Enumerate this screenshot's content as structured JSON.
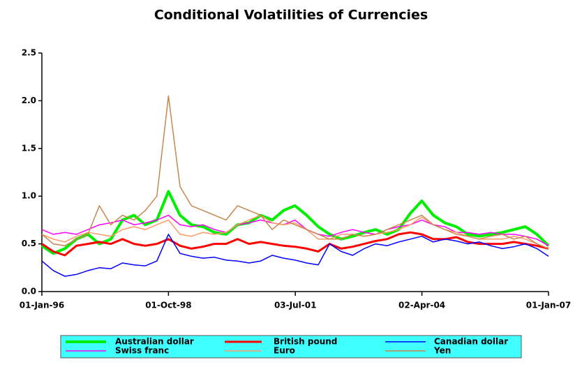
{
  "chart_data": {
    "type": "line",
    "title": "Conditional Volatilities of Currencies",
    "x": [
      "1996-01-01",
      "1996-04-01",
      "1996-07-01",
      "1996-10-01",
      "1997-01-01",
      "1997-04-01",
      "1997-07-01",
      "1997-10-01",
      "1998-01-01",
      "1998-04-01",
      "1998-07-01",
      "1998-10-01",
      "1999-01-01",
      "1999-04-01",
      "1999-07-01",
      "1999-10-01",
      "2000-01-01",
      "2000-04-01",
      "2000-07-01",
      "2000-10-01",
      "2001-01-01",
      "2001-04-01",
      "2001-07-01",
      "2001-10-01",
      "2002-01-01",
      "2002-04-01",
      "2002-07-01",
      "2002-10-01",
      "2003-01-01",
      "2003-04-01",
      "2003-07-01",
      "2003-10-01",
      "2004-01-01",
      "2004-04-01",
      "2004-07-01",
      "2004-10-01",
      "2005-01-01",
      "2005-04-01",
      "2005-07-01",
      "2005-10-01",
      "2006-01-01",
      "2006-04-01",
      "2006-07-01",
      "2006-10-01",
      "2007-01-01"
    ],
    "xlim": [
      "1996-01-01",
      "2007-01-01"
    ],
    "xticks": [
      {
        "value": "1996-01-01",
        "label": "01-Jan-96"
      },
      {
        "value": "1998-10-01",
        "label": "01-Oct-98"
      },
      {
        "value": "2001-07-03",
        "label": "03-Jul-01"
      },
      {
        "value": "2004-04-02",
        "label": "02-Apr-04"
      },
      {
        "value": "2007-01-01",
        "label": "01-Jan-07"
      }
    ],
    "ylim": [
      0,
      2.5
    ],
    "yticks": [
      {
        "value": 0,
        "label": "0.0"
      },
      0.5,
      {
        "value": 1,
        "label": "1.0"
      },
      1.5,
      {
        "value": 2,
        "label": "2.0"
      },
      2.5
    ],
    "legend_background": "#40ffff",
    "series": [
      {
        "name": "Australian dollar",
        "color": "#00ee00",
        "width": 4,
        "values": [
          0.48,
          0.4,
          0.45,
          0.55,
          0.6,
          0.5,
          0.55,
          0.75,
          0.8,
          0.7,
          0.75,
          1.05,
          0.8,
          0.7,
          0.68,
          0.62,
          0.6,
          0.7,
          0.72,
          0.8,
          0.75,
          0.85,
          0.9,
          0.8,
          0.68,
          0.6,
          0.55,
          0.58,
          0.62,
          0.65,
          0.6,
          0.65,
          0.82,
          0.95,
          0.8,
          0.72,
          0.68,
          0.6,
          0.58,
          0.6,
          0.62,
          0.65,
          0.68,
          0.6,
          0.48
        ]
      },
      {
        "name": "British pound",
        "color": "#ff0000",
        "width": 3,
        "values": [
          0.5,
          0.42,
          0.38,
          0.48,
          0.5,
          0.52,
          0.5,
          0.55,
          0.5,
          0.48,
          0.5,
          0.55,
          0.48,
          0.45,
          0.47,
          0.5,
          0.5,
          0.55,
          0.5,
          0.52,
          0.5,
          0.48,
          0.47,
          0.45,
          0.42,
          0.5,
          0.45,
          0.47,
          0.5,
          0.53,
          0.55,
          0.6,
          0.62,
          0.6,
          0.55,
          0.55,
          0.57,
          0.52,
          0.5,
          0.5,
          0.5,
          0.52,
          0.5,
          0.48,
          0.45
        ]
      },
      {
        "name": "Canadian dollar",
        "color": "#0000ff",
        "width": 1.5,
        "values": [
          0.32,
          0.22,
          0.16,
          0.18,
          0.22,
          0.25,
          0.24,
          0.3,
          0.28,
          0.27,
          0.32,
          0.6,
          0.4,
          0.37,
          0.35,
          0.36,
          0.33,
          0.32,
          0.3,
          0.32,
          0.38,
          0.35,
          0.33,
          0.3,
          0.28,
          0.5,
          0.42,
          0.38,
          0.45,
          0.5,
          0.48,
          0.52,
          0.55,
          0.58,
          0.52,
          0.55,
          0.53,
          0.5,
          0.52,
          0.48,
          0.45,
          0.47,
          0.5,
          0.45,
          0.37
        ]
      },
      {
        "name": "Swiss franc",
        "color": "#ff00ff",
        "width": 1.5,
        "values": [
          0.65,
          0.6,
          0.62,
          0.6,
          0.65,
          0.7,
          0.72,
          0.75,
          0.7,
          0.72,
          0.75,
          0.8,
          0.7,
          0.68,
          0.7,
          0.65,
          0.62,
          0.7,
          0.72,
          0.75,
          0.72,
          0.7,
          0.75,
          0.65,
          0.6,
          0.58,
          0.62,
          0.65,
          0.62,
          0.6,
          0.65,
          0.68,
          0.7,
          0.75,
          0.7,
          0.68,
          0.62,
          0.62,
          0.6,
          0.62,
          0.6,
          0.6,
          0.58,
          0.55,
          0.48
        ]
      },
      {
        "name": "Euro",
        "color": "#ff9966",
        "width": 1.5,
        "values": [
          0.6,
          0.55,
          0.52,
          0.58,
          0.62,
          0.6,
          0.58,
          0.65,
          0.68,
          0.65,
          0.7,
          0.75,
          0.6,
          0.58,
          0.62,
          0.6,
          0.62,
          0.7,
          0.75,
          0.8,
          0.72,
          0.7,
          0.72,
          0.65,
          0.55,
          0.55,
          0.6,
          0.6,
          0.58,
          0.6,
          0.62,
          0.65,
          0.7,
          0.78,
          0.7,
          0.65,
          0.62,
          0.58,
          0.55,
          0.55,
          0.55,
          0.58,
          0.55,
          0.5,
          0.45
        ]
      },
      {
        "name": "Yen",
        "color": "#c8864a",
        "width": 1.5,
        "values": [
          0.6,
          0.5,
          0.48,
          0.55,
          0.6,
          0.9,
          0.7,
          0.8,
          0.75,
          0.85,
          1.0,
          2.05,
          1.1,
          0.9,
          0.85,
          0.8,
          0.75,
          0.9,
          0.85,
          0.8,
          0.65,
          0.75,
          0.7,
          0.65,
          0.6,
          0.55,
          0.55,
          0.6,
          0.58,
          0.6,
          0.65,
          0.7,
          0.75,
          0.8,
          0.7,
          0.65,
          0.6,
          0.58,
          0.55,
          0.58,
          0.6,
          0.55,
          0.58,
          0.5,
          0.45
        ]
      }
    ]
  }
}
